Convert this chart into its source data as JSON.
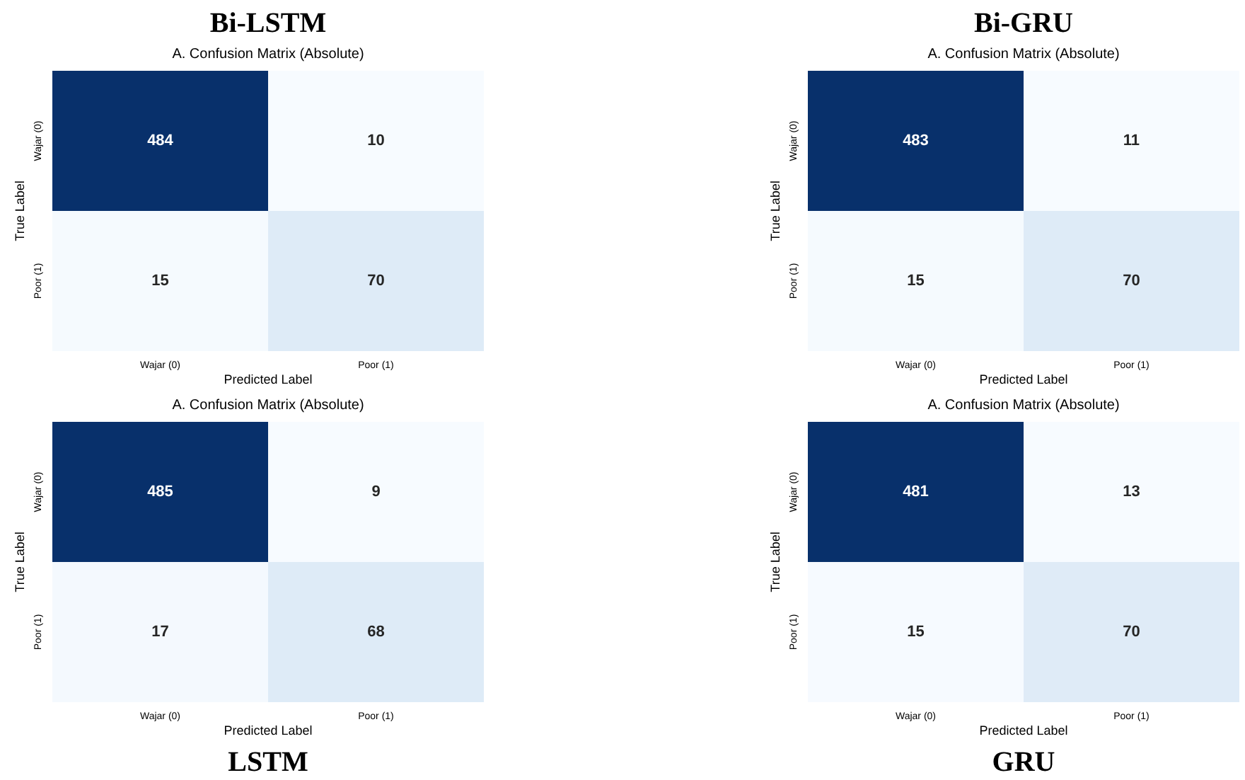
{
  "chart_data": [
    {
      "type": "heatmap",
      "title": "Bi-LSTM",
      "subtitle": "A. Confusion Matrix (Absolute)",
      "xlabel": "Predicted Label",
      "ylabel": "True Label",
      "categories": [
        "Wajar (0)",
        "Poor (1)"
      ],
      "y_categories": [
        "Wajar (0)",
        "Poor (1)"
      ],
      "cells": [
        [
          484,
          10
        ],
        [
          15,
          70
        ]
      ],
      "data_labels": true
    },
    {
      "type": "heatmap",
      "title": "Bi-GRU",
      "subtitle": "A. Confusion Matrix (Absolute)",
      "xlabel": "Predicted Label",
      "ylabel": "True Label",
      "categories": [
        "Wajar (0)",
        "Poor (1)"
      ],
      "y_categories": [
        "Wajar (0)",
        "Poor (1)"
      ],
      "cells": [
        [
          483,
          11
        ],
        [
          15,
          70
        ]
      ],
      "data_labels": true
    },
    {
      "type": "heatmap",
      "title": "LSTM",
      "subtitle": "A. Confusion Matrix (Absolute)",
      "xlabel": "Predicted Label",
      "ylabel": "True Label",
      "categories": [
        "Wajar (0)",
        "Poor (1)"
      ],
      "y_categories": [
        "Wajar (0)",
        "Poor (1)"
      ],
      "cells": [
        [
          485,
          9
        ],
        [
          17,
          68
        ]
      ],
      "data_labels": true
    },
    {
      "type": "heatmap",
      "title": "GRU",
      "subtitle": "A. Confusion Matrix (Absolute)",
      "xlabel": "Predicted Label",
      "ylabel": "True Label",
      "categories": [
        "Wajar (0)",
        "Poor (1)"
      ],
      "y_categories": [
        "Wajar (0)",
        "Poor (1)"
      ],
      "cells": [
        [
          481,
          13
        ],
        [
          15,
          70
        ]
      ],
      "data_labels": true
    }
  ]
}
